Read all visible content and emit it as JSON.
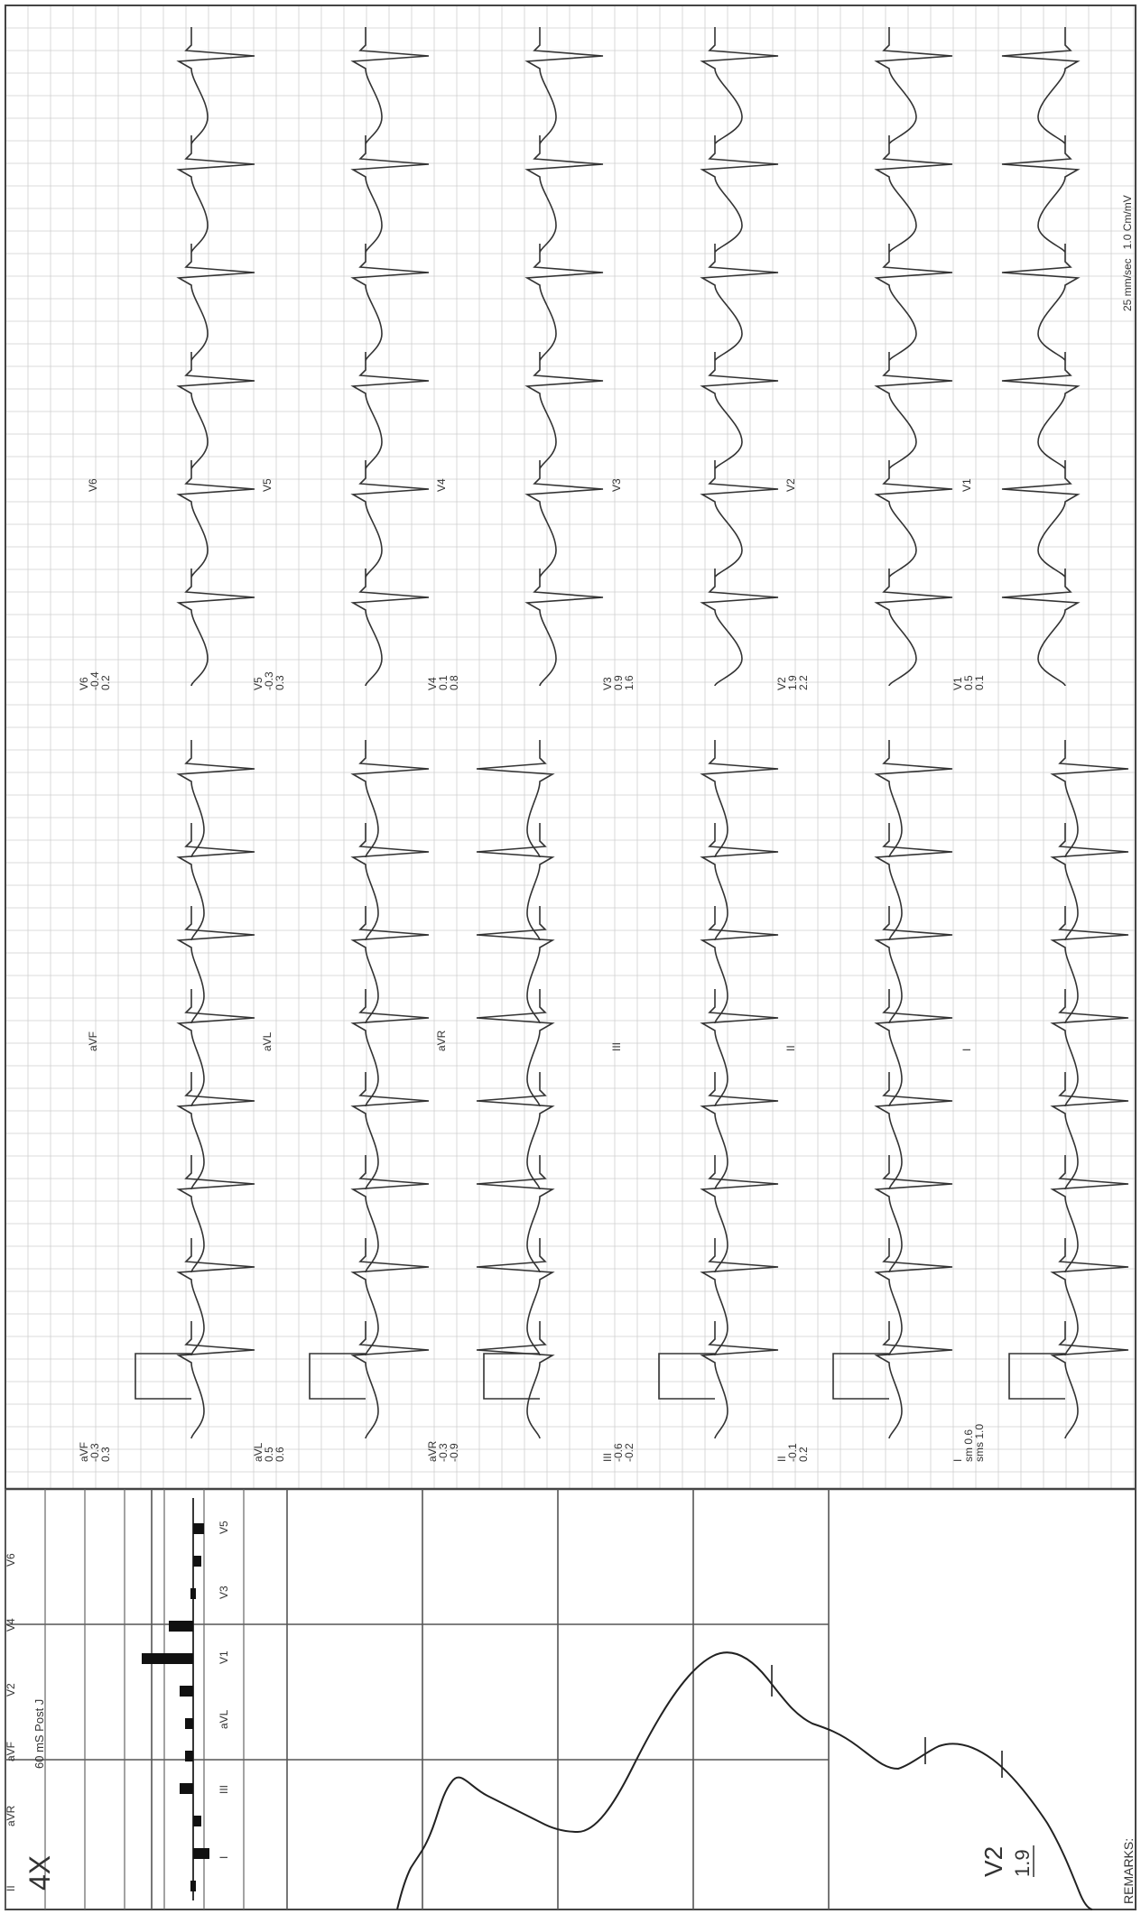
{
  "header": {
    "speed": "25 mm/sec",
    "gain": "1.0 Cm/mV"
  },
  "panel": {
    "magnification": "4X",
    "measure_point": "60 mS Post J",
    "lead": "V2",
    "value": "1.9"
  },
  "footer": {
    "remarks": "REMARKS:"
  },
  "bar_chart": {
    "top_labels": [
      "I",
      "III",
      "aVL",
      "V1",
      "V3",
      "V5"
    ],
    "bottom_labels": [
      "II",
      "aVR",
      "aVF",
      "V2",
      "V4",
      "V6"
    ],
    "level": [
      0.1,
      -0.6,
      -0.3,
      0.5,
      0.3,
      0.3,
      0.5,
      1.9,
      0.9,
      0.1,
      -0.3,
      -0.4
    ]
  },
  "rows": [
    {
      "left": {
        "lead": "I",
        "sm": "sm 0.6",
        "sms": "sms 1.0",
        "label": "I"
      },
      "right": {
        "lead": "V1",
        "v1": "0.5",
        "v2": "0.1",
        "label": "V1"
      }
    },
    {
      "left": {
        "lead": "II",
        "sm": "-0.1",
        "sms": "0.2",
        "label": "II"
      },
      "right": {
        "lead": "V2",
        "v1": "1.9",
        "v2": "2.2",
        "label": "V2"
      }
    },
    {
      "left": {
        "lead": "III",
        "sm": "-0.6",
        "sms": "-0.2",
        "label": "III"
      },
      "right": {
        "lead": "V3",
        "v1": "0.9",
        "v2": "1.6",
        "label": "V3"
      }
    },
    {
      "left": {
        "lead": "aVR",
        "sm": "-0.3",
        "sms": "-0.9",
        "label": "aVR"
      },
      "right": {
        "lead": "V4",
        "v1": "0.1",
        "v2": "0.8",
        "label": "V4"
      }
    },
    {
      "left": {
        "lead": "aVL",
        "sm": "0.5",
        "sms": "0.6",
        "label": "aVL"
      },
      "right": {
        "lead": "V5",
        "v1": "-0.3",
        "v2": "0.3",
        "label": "V5"
      }
    },
    {
      "left": {
        "lead": "aVF",
        "sm": "-0.3",
        "sms": "0.3",
        "label": "aVF"
      },
      "right": {
        "lead": "V6",
        "v1": "-0.4",
        "v2": "0.2",
        "label": "V6"
      }
    }
  ]
}
